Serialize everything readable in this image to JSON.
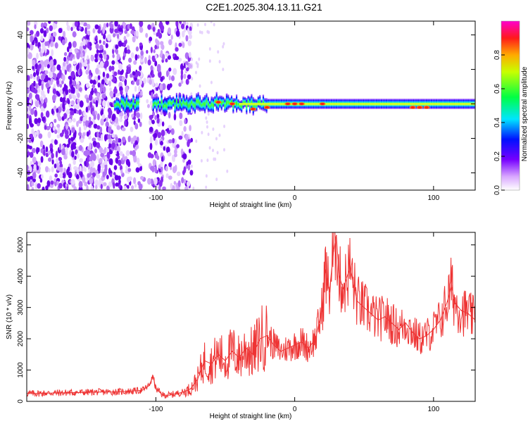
{
  "figure": {
    "title": "C2E1.2025.304.13.11.G21"
  },
  "chart_data": [
    {
      "type": "heatmap",
      "title": "C2E1.2025.304.13.11.G21",
      "xlabel": "Height of straight line (km)",
      "ylabel": "Frequency (Hz)",
      "xlim": [
        -193,
        130
      ],
      "ylim": [
        -50,
        48
      ],
      "xticks": [
        -100,
        0,
        100
      ],
      "yticks": [
        -40,
        -20,
        0,
        20,
        40
      ],
      "colorbar": {
        "label": "Normalized spectral amplitude",
        "range": [
          0,
          1
        ],
        "ticks": [
          0.0,
          0.2,
          0.4,
          0.6,
          0.8
        ],
        "colormap": "rainbow (white→violet→blue→cyan→green→yellow→red→magenta)"
      },
      "features": {
        "noise_region_x": [
          -193,
          -80
        ],
        "noise_gap_x": [
          -110,
          -105
        ],
        "signal_start_x": -130,
        "signal_center_frequency_hz": 0,
        "signal_band_halfwidth_hz": 3,
        "peak_points": [
          {
            "x": -55,
            "f": 1
          },
          {
            "x": -45,
            "f": 0
          },
          {
            "x": -30,
            "f": -3
          },
          {
            "x": -20,
            "f": -2
          },
          {
            "x": -5,
            "f": 0
          },
          {
            "x": 0,
            "f": 0
          },
          {
            "x": 5,
            "f": 0
          },
          {
            "x": 20,
            "f": 0
          },
          {
            "x": 85,
            "f": -2
          },
          {
            "x": 90,
            "f": -2
          },
          {
            "x": 95,
            "f": -2
          }
        ]
      }
    },
    {
      "type": "line",
      "xlabel": "Height of straight line (km)",
      "ylabel": "SNR (10 * v/v)",
      "xlim": [
        -193,
        130
      ],
      "ylim": [
        0,
        5400
      ],
      "xticks": [
        -100,
        0,
        100
      ],
      "yticks": [
        0,
        1000,
        2000,
        3000,
        4000,
        5000
      ],
      "series_color": "#ee3333",
      "series": [
        {
          "name": "SNR",
          "x": [
            -193,
            -180,
            -170,
            -160,
            -150,
            -140,
            -130,
            -120,
            -110,
            -105,
            -102,
            -100,
            -95,
            -90,
            -85,
            -80,
            -75,
            -70,
            -65,
            -60,
            -55,
            -50,
            -45,
            -40,
            -35,
            -30,
            -25,
            -20,
            -15,
            -10,
            -5,
            0,
            5,
            10,
            15,
            20,
            22,
            25,
            28,
            30,
            32,
            35,
            40,
            42,
            45,
            50,
            55,
            60,
            65,
            70,
            75,
            80,
            85,
            90,
            95,
            100,
            105,
            110,
            113,
            115,
            118,
            120,
            125,
            130
          ],
          "y": [
            250,
            260,
            270,
            280,
            290,
            300,
            300,
            320,
            350,
            500,
            800,
            400,
            200,
            200,
            250,
            300,
            400,
            700,
            1300,
            1200,
            1500,
            1300,
            1600,
            1400,
            1700,
            1500,
            2000,
            2100,
            1800,
            1600,
            1700,
            1800,
            1900,
            1700,
            2000,
            3000,
            4200,
            3500,
            4800,
            5300,
            4000,
            3600,
            4300,
            3800,
            3200,
            3000,
            2800,
            2600,
            2700,
            2500,
            2300,
            2500,
            2200,
            2000,
            2100,
            2300,
            2600,
            3200,
            3700,
            3200,
            3000,
            2900,
            2800,
            2600
          ]
        }
      ]
    }
  ]
}
